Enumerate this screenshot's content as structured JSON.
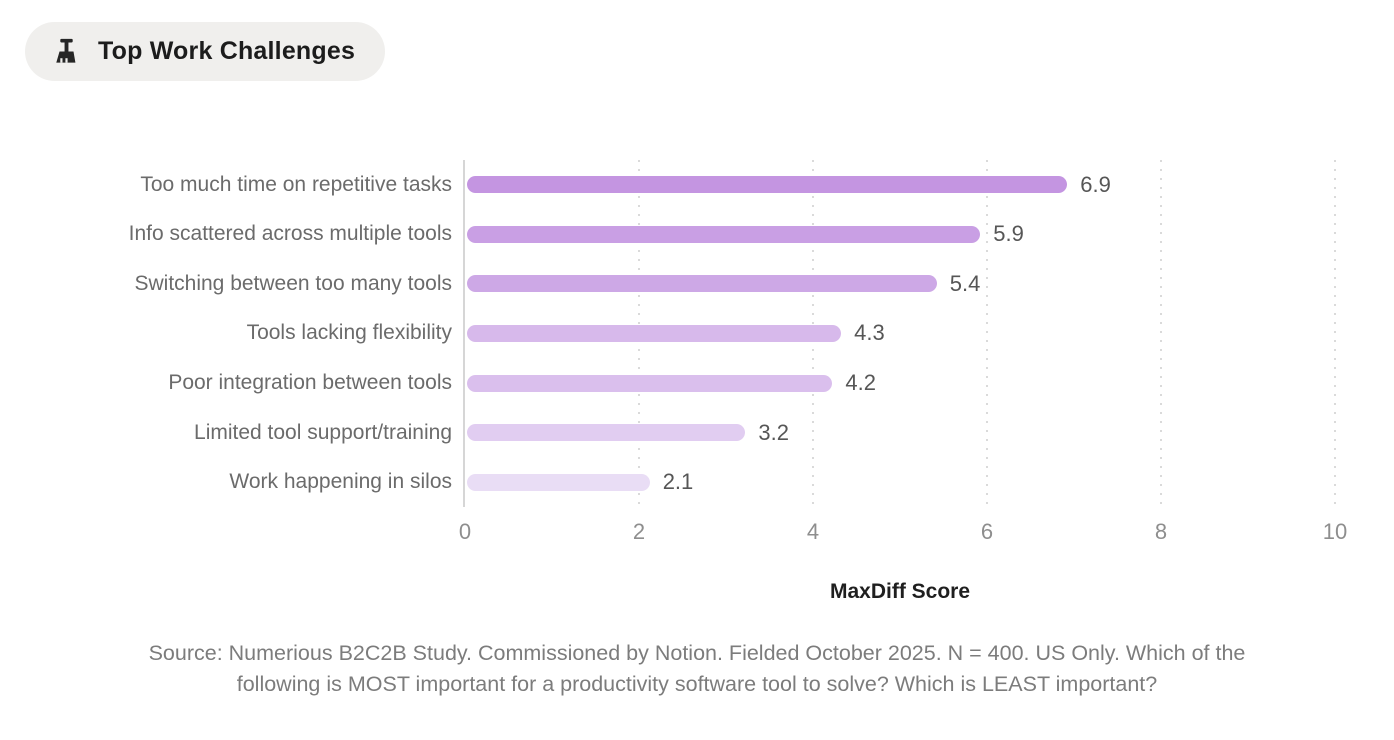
{
  "badge": {
    "label": "Top Work Challenges",
    "icon": "broom-icon",
    "background": "#f0efed",
    "text_color": "#1c1c1c"
  },
  "chart_data": {
    "type": "bar",
    "orientation": "horizontal",
    "title": "Top Work Challenges",
    "categories": [
      "Too much time on repetitive tasks",
      "Info scattered across multiple tools",
      "Switching between too many tools",
      "Tools lacking flexibility",
      "Poor integration between tools",
      "Limited tool support/training",
      "Work happening in silos"
    ],
    "values": [
      6.9,
      5.9,
      5.4,
      4.3,
      4.2,
      3.2,
      2.1
    ],
    "value_labels": [
      "6.9",
      "5.9",
      "5.4",
      "4.3",
      "4.2",
      "3.2",
      "2.1"
    ],
    "bar_colors": [
      "#c495e1",
      "#c99fe4",
      "#cda8e6",
      "#d7b9eb",
      "#dabfed",
      "#e1cdf1",
      "#e9ddf5"
    ],
    "xlabel": "MaxDiff Score",
    "ylabel": "",
    "xlim": [
      0,
      10
    ],
    "xticks": [
      "0",
      "2",
      "4",
      "6",
      "8",
      "10"
    ],
    "grid": "vertical-dotted",
    "gridline_color": "#dadada",
    "axis_line_color": "#d6d6d6",
    "legend": "none"
  },
  "source": {
    "lines": [
      "Source: Numerious B2C2B Study. Commissioned by Notion. Fielded October 2025. N = 400. US Only. Which of the",
      "following is MOST important for a productivity software tool to solve? Which is LEAST important?"
    ]
  }
}
